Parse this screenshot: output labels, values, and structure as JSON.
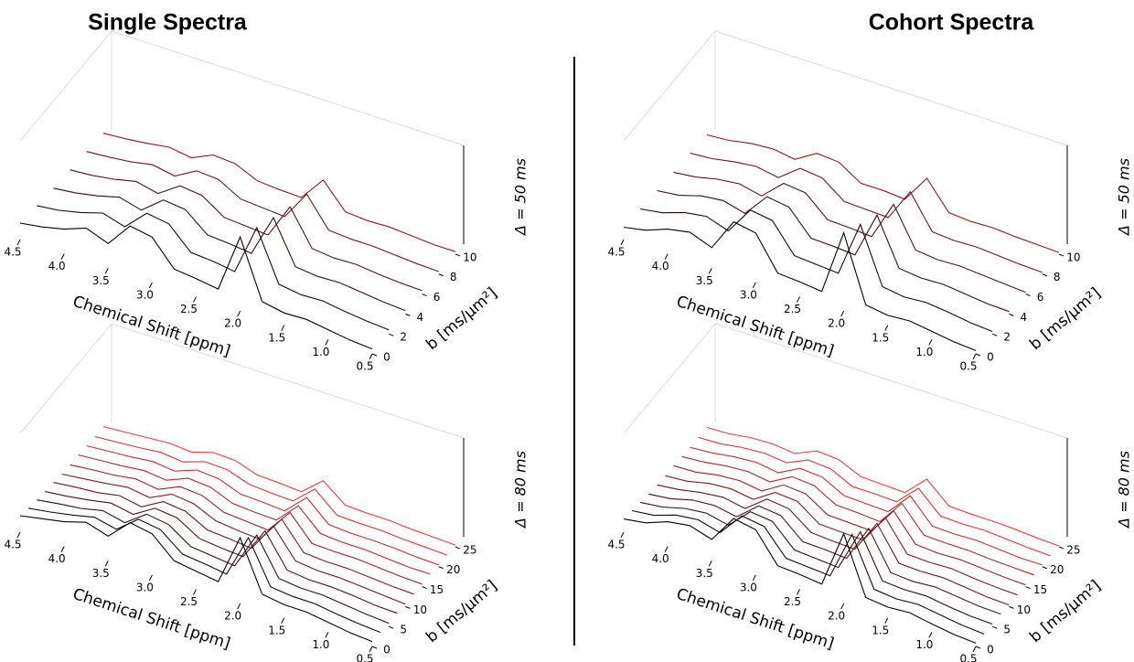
{
  "columns": [
    "Single Spectra",
    "Cohort Spectra"
  ],
  "chart_data": [
    {
      "type": "waterfall",
      "label": "Δ = 50 ms",
      "xlabel": "Chemical Shift [ppm]",
      "ylabel": "b [ms/μm²]",
      "x": [
        4.5,
        4.25,
        4.0,
        3.75,
        3.5,
        3.25,
        3.0,
        2.75,
        2.5,
        2.25,
        2.0,
        1.75,
        1.5,
        1.25,
        1.0,
        0.75,
        0.5
      ],
      "xlim": [
        4.5,
        0.5
      ],
      "xticks": [
        4.5,
        {
          "value": 4,
          "label": "4.0"
        },
        3.5,
        {
          "value": 3,
          "label": "3.0"
        },
        2.5,
        {
          "value": 2,
          "label": "2.0"
        },
        1.5,
        {
          "value": 1,
          "label": "1.0"
        },
        0.5
      ],
      "ylim": [
        0,
        11
      ],
      "yticks": [
        0,
        2,
        4,
        6,
        8,
        10
      ],
      "b": [
        0,
        2,
        4,
        6,
        8,
        10
      ],
      "series": [
        {
          "color": "#000000",
          "values": [
            2.0,
            2.4,
            3.0,
            4.0,
            3.0,
            6.0,
            5.5,
            2.5,
            2.2,
            1.8,
            9.0,
            2.0,
            1.5,
            1.6,
            1.2,
            0.8,
            0.6
          ]
        },
        {
          "color": "#1c0606",
          "values": [
            1.7,
            2.0,
            2.6,
            3.4,
            2.6,
            5.1,
            4.7,
            2.1,
            1.9,
            1.5,
            7.7,
            1.7,
            1.3,
            1.4,
            1.0,
            0.7,
            0.5
          ]
        },
        {
          "color": "#380b0b",
          "values": [
            1.4,
            1.7,
            2.2,
            2.9,
            2.2,
            4.3,
            4.0,
            1.8,
            1.6,
            1.3,
            6.5,
            1.4,
            1.1,
            1.2,
            0.9,
            0.6,
            0.4
          ]
        },
        {
          "color": "#541111",
          "values": [
            1.2,
            1.4,
            1.8,
            2.4,
            1.8,
            3.6,
            3.3,
            1.5,
            1.3,
            1.1,
            5.4,
            1.2,
            0.9,
            1.0,
            0.7,
            0.5,
            0.4
          ]
        },
        {
          "color": "#6e1616",
          "values": [
            1.0,
            1.2,
            1.5,
            2.0,
            1.5,
            3.0,
            2.8,
            1.3,
            1.1,
            0.9,
            4.5,
            1.0,
            0.8,
            0.8,
            0.6,
            0.4,
            0.3
          ]
        },
        {
          "color": "#8b1a1a",
          "values": [
            0.8,
            1.0,
            1.3,
            1.7,
            1.3,
            2.5,
            2.3,
            1.1,
            0.9,
            0.8,
            3.8,
            0.8,
            0.6,
            0.7,
            0.5,
            0.3,
            0.3
          ]
        }
      ]
    },
    {
      "type": "waterfall",
      "label": "Δ = 50 ms",
      "xlabel": "Chemical Shift [ppm]",
      "ylabel": "b [ms/μm²]",
      "x": [
        4.5,
        4.25,
        4.0,
        3.75,
        3.5,
        3.25,
        3.0,
        2.75,
        2.5,
        2.25,
        2.0,
        1.75,
        1.5,
        1.25,
        1.0,
        0.75,
        0.5
      ],
      "xlim": [
        4.5,
        0.5
      ],
      "xticks": [
        4.5,
        {
          "value": 4,
          "label": "4.0"
        },
        3.5,
        {
          "value": 3,
          "label": "3.0"
        },
        2.5,
        {
          "value": 2,
          "label": "2.0"
        },
        1.5,
        {
          "value": 1,
          "label": "1.0"
        },
        0.5
      ],
      "ylim": [
        0,
        11
      ],
      "yticks": [
        0,
        2,
        4,
        6,
        8,
        10
      ],
      "b": [
        0,
        2,
        4,
        6,
        8,
        10
      ],
      "series": [
        {
          "color": "#000000",
          "values": [
            1.5,
            2.0,
            3.0,
            3.5,
            2.5,
            6.5,
            6.0,
            2.0,
            1.8,
            1.5,
            9.5,
            1.6,
            1.2,
            1.4,
            1.0,
            0.6,
            0.4
          ]
        },
        {
          "color": "#1c0606",
          "values": [
            1.3,
            1.7,
            2.6,
            3.0,
            2.1,
            5.5,
            5.1,
            1.7,
            1.5,
            1.3,
            8.1,
            1.4,
            1.0,
            1.2,
            0.9,
            0.5,
            0.3
          ]
        },
        {
          "color": "#380b0b",
          "values": [
            1.1,
            1.4,
            2.2,
            2.5,
            1.8,
            4.7,
            4.3,
            1.4,
            1.3,
            1.1,
            6.8,
            1.2,
            0.9,
            1.0,
            0.7,
            0.4,
            0.3
          ]
        },
        {
          "color": "#541111",
          "values": [
            0.9,
            1.2,
            1.8,
            2.1,
            1.5,
            3.9,
            3.6,
            1.2,
            1.1,
            0.9,
            5.7,
            1.0,
            0.7,
            0.8,
            0.6,
            0.4,
            0.2
          ]
        },
        {
          "color": "#6e1616",
          "values": [
            0.8,
            1.0,
            1.5,
            1.8,
            1.3,
            3.3,
            3.0,
            1.0,
            0.9,
            0.8,
            4.8,
            0.8,
            0.6,
            0.7,
            0.5,
            0.3,
            0.2
          ]
        },
        {
          "color": "#8b1a1a",
          "values": [
            0.6,
            0.8,
            1.3,
            1.5,
            1.1,
            2.7,
            2.5,
            0.8,
            0.8,
            0.6,
            4.0,
            0.7,
            0.5,
            0.6,
            0.4,
            0.3,
            0.2
          ]
        }
      ]
    },
    {
      "type": "waterfall",
      "label": "Δ = 80 ms",
      "xlabel": "Chemical Shift [ppm]",
      "ylabel": "b [ms/μm²]",
      "x": [
        4.5,
        4.25,
        4.0,
        3.75,
        3.5,
        3.25,
        3.0,
        2.75,
        2.5,
        2.25,
        2.0,
        1.75,
        1.5,
        1.25,
        1.0,
        0.75,
        0.5
      ],
      "xlim": [
        4.5,
        0.5
      ],
      "xticks": [
        4.5,
        {
          "value": 4,
          "label": "4.0"
        },
        3.5,
        {
          "value": 3,
          "label": "3.0"
        },
        2.5,
        {
          "value": 2,
          "label": "2.0"
        },
        1.5,
        {
          "value": 1,
          "label": "1.0"
        },
        0.5
      ],
      "ylim": [
        0,
        27.5
      ],
      "yticks": [
        0,
        5,
        10,
        15,
        20,
        25
      ],
      "b": [
        0,
        2.5,
        5,
        7.5,
        10,
        12.5,
        15,
        17.5,
        20,
        22.5,
        25
      ],
      "series": [
        {
          "color": "#000000",
          "values": [
            2.0,
            2.5,
            3.0,
            3.8,
            3.0,
            5.5,
            5.0,
            2.6,
            2.2,
            1.8,
            8.0,
            2.0,
            1.6,
            1.6,
            1.2,
            0.8,
            0.6
          ]
        },
        {
          "color": "#1a0606",
          "values": [
            1.7,
            2.1,
            2.6,
            3.2,
            2.6,
            4.7,
            4.3,
            2.2,
            1.9,
            1.5,
            6.8,
            1.7,
            1.4,
            1.4,
            1.0,
            0.7,
            0.5
          ]
        },
        {
          "color": "#330b0b",
          "values": [
            1.5,
            1.9,
            2.2,
            2.8,
            2.2,
            4.1,
            3.7,
            1.9,
            1.6,
            1.3,
            5.9,
            1.5,
            1.2,
            1.2,
            0.9,
            0.6,
            0.4
          ]
        },
        {
          "color": "#4d1111",
          "values": [
            1.3,
            1.6,
            2.0,
            2.5,
            2.0,
            3.6,
            3.3,
            1.7,
            1.4,
            1.2,
            5.2,
            1.3,
            1.0,
            1.0,
            0.8,
            0.5,
            0.4
          ]
        },
        {
          "color": "#661616",
          "values": [
            1.2,
            1.5,
            1.7,
            2.2,
            1.7,
            3.2,
            2.9,
            1.5,
            1.3,
            1.0,
            4.6,
            1.2,
            0.9,
            0.9,
            0.7,
            0.5,
            0.3
          ]
        },
        {
          "color": "#801b1b",
          "values": [
            1.0,
            1.3,
            1.6,
            2.0,
            1.6,
            2.9,
            2.6,
            1.4,
            1.1,
            0.9,
            4.2,
            1.0,
            0.8,
            0.8,
            0.6,
            0.4,
            0.3
          ]
        },
        {
          "color": "#992020",
          "values": [
            0.9,
            1.2,
            1.4,
            1.8,
            1.4,
            2.6,
            2.4,
            1.2,
            1.0,
            0.8,
            3.8,
            0.9,
            0.8,
            0.8,
            0.6,
            0.4,
            0.3
          ]
        },
        {
          "color": "#b32626",
          "values": [
            0.9,
            1.1,
            1.3,
            1.6,
            1.3,
            2.4,
            2.2,
            1.1,
            0.9,
            0.8,
            3.4,
            0.9,
            0.7,
            0.7,
            0.5,
            0.3,
            0.3
          ]
        },
        {
          "color": "#cc2b2b",
          "values": [
            0.8,
            1.0,
            1.2,
            1.5,
            1.2,
            2.2,
            2.0,
            1.0,
            0.9,
            0.7,
            3.2,
            0.8,
            0.6,
            0.6,
            0.5,
            0.3,
            0.2
          ]
        },
        {
          "color": "#e63131",
          "values": [
            0.7,
            0.9,
            1.1,
            1.4,
            1.1,
            2.0,
            1.9,
            1.0,
            0.8,
            0.7,
            3.0,
            0.7,
            0.6,
            0.6,
            0.4,
            0.3,
            0.2
          ]
        },
        {
          "color": "#ff3838",
          "values": [
            0.7,
            0.9,
            1.1,
            1.3,
            1.1,
            1.9,
            1.8,
            0.9,
            0.8,
            0.6,
            2.8,
            0.7,
            0.6,
            0.6,
            0.4,
            0.3,
            0.2
          ]
        }
      ]
    },
    {
      "type": "waterfall",
      "label": "Δ = 80 ms",
      "xlabel": "Chemical Shift [ppm]",
      "ylabel": "b [ms/μm²]",
      "x": [
        4.5,
        4.25,
        4.0,
        3.75,
        3.5,
        3.25,
        3.0,
        2.75,
        2.5,
        2.25,
        2.0,
        1.75,
        1.5,
        1.25,
        1.0,
        0.75,
        0.5
      ],
      "xlim": [
        4.5,
        0.5
      ],
      "xticks": [
        4.5,
        {
          "value": 4,
          "label": "4.0"
        },
        3.5,
        {
          "value": 3,
          "label": "3.0"
        },
        2.5,
        {
          "value": 2,
          "label": "2.0"
        },
        1.5,
        {
          "value": 1,
          "label": "1.0"
        },
        0.5
      ],
      "ylim": [
        0,
        27.5
      ],
      "yticks": [
        0,
        5,
        10,
        15,
        20,
        25
      ],
      "b": [
        0,
        2.5,
        5,
        7.5,
        10,
        12.5,
        15,
        17.5,
        20,
        22.5,
        25
      ],
      "series": [
        {
          "color": "#000000",
          "values": [
            1.6,
            2.0,
            3.0,
            3.4,
            2.6,
            6.0,
            5.5,
            2.0,
            1.8,
            1.5,
            8.5,
            1.6,
            1.3,
            1.5,
            1.0,
            0.6,
            0.4
          ]
        },
        {
          "color": "#1a0606",
          "values": [
            1.4,
            1.7,
            2.6,
            2.9,
            2.2,
            5.1,
            4.7,
            1.7,
            1.5,
            1.3,
            7.2,
            1.4,
            1.1,
            1.3,
            0.9,
            0.5,
            0.3
          ]
        },
        {
          "color": "#330b0b",
          "values": [
            1.2,
            1.5,
            2.2,
            2.5,
            1.9,
            4.4,
            4.1,
            1.5,
            1.3,
            1.1,
            6.3,
            1.2,
            1.0,
            1.1,
            0.7,
            0.4,
            0.3
          ]
        },
        {
          "color": "#4d1111",
          "values": [
            1.0,
            1.3,
            2.0,
            2.2,
            1.7,
            3.9,
            3.6,
            1.3,
            1.2,
            1.0,
            5.5,
            1.0,
            0.8,
            1.0,
            0.7,
            0.4,
            0.3
          ]
        },
        {
          "color": "#661616",
          "values": [
            0.9,
            1.2,
            1.7,
            2.0,
            1.5,
            3.5,
            3.2,
            1.2,
            1.0,
            0.9,
            4.9,
            0.9,
            0.8,
            0.9,
            0.6,
            0.3,
            0.2
          ]
        },
        {
          "color": "#801b1b",
          "values": [
            0.8,
            1.0,
            1.6,
            1.8,
            1.4,
            3.1,
            2.9,
            1.0,
            0.9,
            0.8,
            4.4,
            0.8,
            0.7,
            0.8,
            0.5,
            0.3,
            0.2
          ]
        },
        {
          "color": "#992020",
          "values": [
            0.8,
            0.9,
            1.4,
            1.6,
            1.2,
            2.8,
            2.6,
            0.9,
            0.8,
            0.7,
            4.0,
            0.8,
            0.6,
            0.7,
            0.5,
            0.3,
            0.2
          ]
        },
        {
          "color": "#b32626",
          "values": [
            0.7,
            0.9,
            1.3,
            1.5,
            1.1,
            2.6,
            2.4,
            0.9,
            0.8,
            0.6,
            3.7,
            0.7,
            0.6,
            0.6,
            0.4,
            0.3,
            0.2
          ]
        },
        {
          "color": "#cc2b2b",
          "values": [
            0.6,
            0.8,
            1.2,
            1.4,
            1.0,
            2.4,
            2.2,
            0.8,
            0.7,
            0.6,
            3.4,
            0.6,
            0.5,
            0.6,
            0.4,
            0.2,
            0.2
          ]
        },
        {
          "color": "#e63131",
          "values": [
            0.6,
            0.7,
            1.1,
            1.3,
            1.0,
            2.2,
            2.0,
            0.7,
            0.7,
            0.6,
            3.1,
            0.6,
            0.5,
            0.6,
            0.4,
            0.2,
            0.1
          ]
        },
        {
          "color": "#ff3838",
          "values": [
            0.6,
            0.7,
            1.1,
            1.2,
            0.9,
            2.1,
            1.9,
            0.7,
            0.6,
            0.5,
            3.0,
            0.6,
            0.5,
            0.5,
            0.4,
            0.2,
            0.1
          ]
        }
      ]
    }
  ]
}
